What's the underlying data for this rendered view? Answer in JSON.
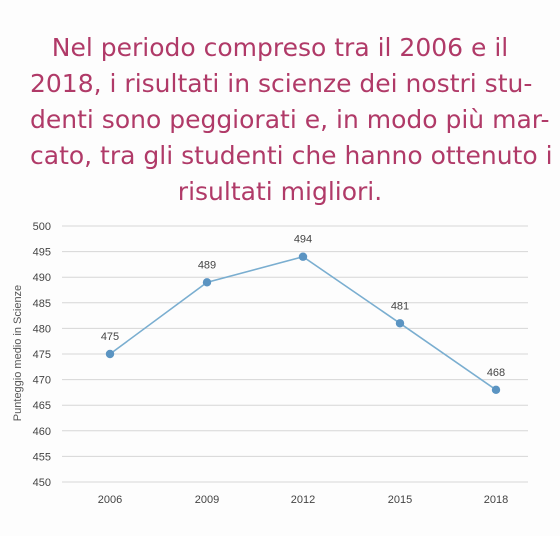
{
  "headline": {
    "lines": [
      "Nel periodo compreso tra il 2006 e il",
      "2018, i risultati in scienze dei nostri stu-",
      "denti sono peggiorati e, in modo più mar-",
      "cato, tra gli studenti che hanno ottenuto i",
      "risultati migliori."
    ],
    "color": "#b03a68"
  },
  "chart_data": {
    "type": "line",
    "categories": [
      "2006",
      "2009",
      "2012",
      "2015",
      "2018"
    ],
    "series": [
      {
        "values": [
          475,
          489,
          494,
          481,
          468
        ],
        "data_labels": [
          "475",
          "489",
          "494",
          "481",
          "468"
        ],
        "color": "#7aaed0",
        "marker_color": "#5b94c2"
      }
    ],
    "title": "",
    "xlabel": "",
    "ylabel": "Punteggio medio in Scienze",
    "ylim": [
      450,
      500
    ],
    "yticks": [
      {
        "value": 450,
        "label": "450"
      },
      {
        "value": 455,
        "label": "455"
      },
      {
        "value": 460,
        "label": "460"
      },
      {
        "value": 465,
        "label": "465"
      },
      {
        "value": 470,
        "label": "470"
      },
      {
        "value": 475,
        "label": "475"
      },
      {
        "value": 480,
        "label": "480"
      },
      {
        "value": 485,
        "label": "485"
      },
      {
        "value": 490,
        "label": "490"
      },
      {
        "value": 495,
        "label": "495"
      },
      {
        "value": 500,
        "label": "500"
      }
    ],
    "grid": true,
    "legend": "none"
  }
}
